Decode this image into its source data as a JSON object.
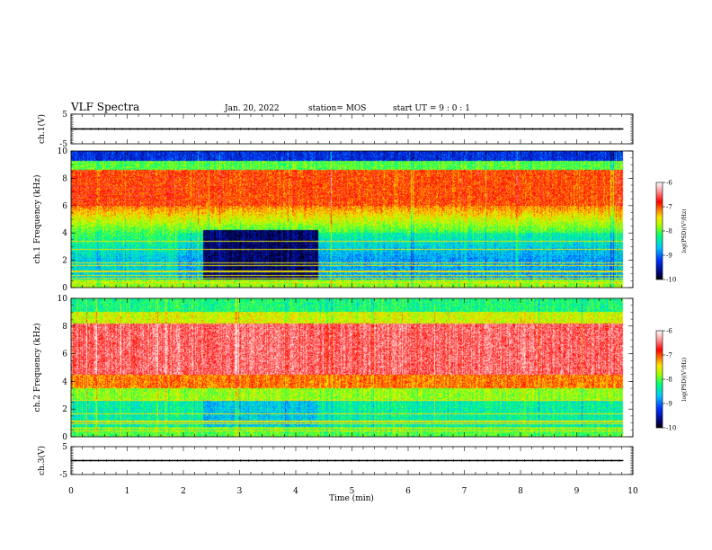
{
  "header": {
    "title": "VLF Spectra",
    "date": "Jan. 20, 2022",
    "station": "station= MOS",
    "start": "start UT = 9 : 0 : 1"
  },
  "chart_data": [
    {
      "type": "line",
      "id": "ch1-waveform",
      "ylabel": "ch.1(V)",
      "ylim": [
        -5,
        5
      ],
      "yticks": [
        "5",
        "-5"
      ],
      "xlim": [
        0,
        10
      ],
      "series": [
        {
          "x": [
            0,
            9.83
          ],
          "y": [
            0,
            0
          ]
        }
      ]
    },
    {
      "type": "heatmap",
      "id": "ch1-spectrogram",
      "ylabel": "ch.1 Frequency (kHz)",
      "ylim": [
        0,
        10
      ],
      "yticks": [
        "0",
        "2",
        "4",
        "6",
        "8",
        "10"
      ],
      "xlim": [
        0,
        10
      ],
      "data_end_min": 9.83,
      "quiet_window_min": [
        2.35,
        4.4
      ],
      "colorbar": {
        "label": "log(PSD)(V²/Hz)",
        "range": [
          -10,
          -6
        ],
        "ticks": [
          "-6",
          "-7",
          "-8",
          "-9",
          "-10"
        ]
      }
    },
    {
      "type": "heatmap",
      "id": "ch2-spectrogram",
      "ylabel": "ch.2 Frequency (kHz)",
      "ylim": [
        0,
        10
      ],
      "yticks": [
        "0",
        "2",
        "4",
        "6",
        "8",
        "10"
      ],
      "xlim": [
        0,
        10
      ],
      "data_end_min": 9.83,
      "colorbar": {
        "label": "log(PSD)(V²/Hz)",
        "range": [
          -10,
          -6
        ],
        "ticks": [
          "-6",
          "-7",
          "-8",
          "-9",
          "-10"
        ]
      }
    },
    {
      "type": "line",
      "id": "ch3-waveform",
      "ylabel": "ch.3(V)",
      "ylim": [
        -5,
        5
      ],
      "yticks": [
        "5",
        "-5"
      ],
      "xlim": [
        0,
        10
      ],
      "series": [
        {
          "x": [
            0,
            9.83
          ],
          "y": [
            0,
            0
          ]
        }
      ]
    }
  ],
  "xaxis": {
    "label": "Time (min)",
    "ticks": [
      "0",
      "1",
      "2",
      "3",
      "4",
      "5",
      "6",
      "7",
      "8",
      "9",
      "10"
    ]
  }
}
